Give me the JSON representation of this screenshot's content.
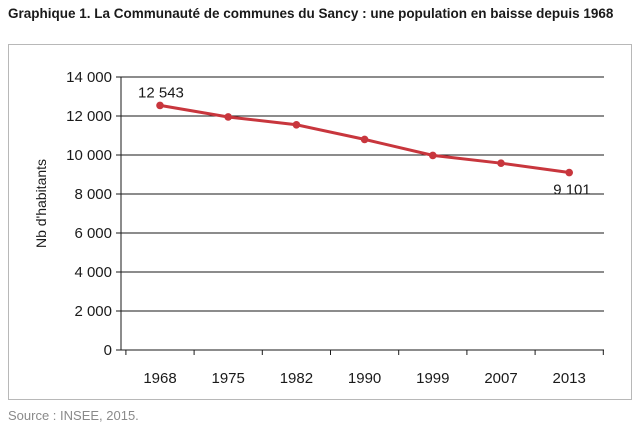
{
  "title": "Graphique 1. La Communauté de communes du Sancy : une population en baisse depuis 1968",
  "source": "Source : INSEE, 2015.",
  "colors": {
    "line": "#c8363d",
    "grid": "#1a1a1a",
    "axis": "#1a1a1a"
  },
  "chart_data": {
    "type": "line",
    "title": "",
    "xlabel": "",
    "ylabel": "Nb d'habitants",
    "categories": [
      "1968",
      "1975",
      "1982",
      "1990",
      "1999",
      "2007",
      "2013"
    ],
    "series": [
      {
        "values": [
          12543,
          11950,
          11550,
          10800,
          9980,
          9580,
          9101
        ]
      }
    ],
    "ylim": [
      0,
      14000
    ],
    "y_ticks": [
      0,
      2000,
      4000,
      6000,
      8000,
      10000,
      12000,
      14000
    ],
    "y_tick_labels": [
      "0",
      "2 000",
      "4 000",
      "6 000",
      "8 000",
      "10 000",
      "12 000",
      "14 000"
    ],
    "data_labels": [
      {
        "category": "1968",
        "text": "12 543"
      },
      {
        "category": "2013",
        "text": "9 101"
      }
    ],
    "grid": true,
    "legend": "none"
  }
}
